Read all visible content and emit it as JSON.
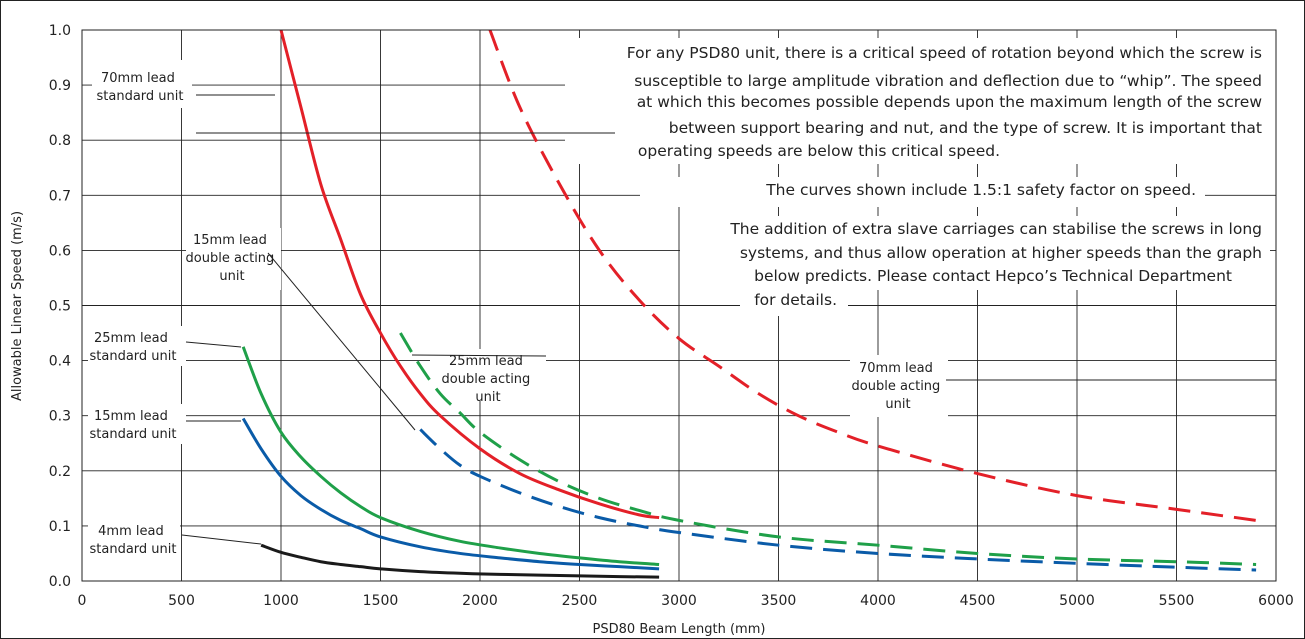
{
  "chart_data": {
    "type": "line",
    "title": "",
    "xlabel": "PSD80 Beam Length (mm)",
    "ylabel": "Allowable Linear Speed (m/s)",
    "xlim": [
      0,
      6000
    ],
    "ylim": [
      0,
      1.0
    ],
    "x_ticks": [
      "0",
      "500",
      "1000",
      "1500",
      "2000",
      "2500",
      "3000",
      "3500",
      "4000",
      "4500",
      "5000",
      "5500",
      "6000"
    ],
    "y_ticks": [
      "0.0",
      "0.1",
      "0.2",
      "0.3",
      "0.4",
      "0.5",
      "0.6",
      "0.7",
      "0.8",
      "0.9",
      "1.0"
    ],
    "grid": true,
    "series": [
      {
        "name": "70mm lead standard unit",
        "color": "#e32028",
        "style": "solid",
        "points": [
          [
            1000,
            1.0
          ],
          [
            1100,
            0.86
          ],
          [
            1200,
            0.72
          ],
          [
            1300,
            0.62
          ],
          [
            1400,
            0.52
          ],
          [
            1500,
            0.45
          ],
          [
            1600,
            0.39
          ],
          [
            1700,
            0.34
          ],
          [
            1800,
            0.3
          ],
          [
            2000,
            0.24
          ],
          [
            2200,
            0.195
          ],
          [
            2400,
            0.165
          ],
          [
            2600,
            0.14
          ],
          [
            2800,
            0.12
          ],
          [
            2900,
            0.115
          ]
        ]
      },
      {
        "name": "70mm lead double acting unit",
        "color": "#e32028",
        "style": "dashed",
        "points": [
          [
            2050,
            1.0
          ],
          [
            2200,
            0.86
          ],
          [
            2400,
            0.72
          ],
          [
            2600,
            0.6
          ],
          [
            2800,
            0.51
          ],
          [
            3000,
            0.44
          ],
          [
            3200,
            0.39
          ],
          [
            3400,
            0.34
          ],
          [
            3600,
            0.3
          ],
          [
            3800,
            0.27
          ],
          [
            4000,
            0.245
          ],
          [
            4500,
            0.195
          ],
          [
            5000,
            0.155
          ],
          [
            5500,
            0.13
          ],
          [
            5900,
            0.11
          ]
        ]
      },
      {
        "name": "25mm lead standard unit",
        "color": "#1fa049",
        "style": "solid",
        "points": [
          [
            810,
            0.425
          ],
          [
            900,
            0.34
          ],
          [
            1000,
            0.27
          ],
          [
            1100,
            0.225
          ],
          [
            1200,
            0.19
          ],
          [
            1300,
            0.16
          ],
          [
            1400,
            0.135
          ],
          [
            1500,
            0.115
          ],
          [
            1700,
            0.09
          ],
          [
            1900,
            0.072
          ],
          [
            2100,
            0.06
          ],
          [
            2300,
            0.05
          ],
          [
            2500,
            0.042
          ],
          [
            2700,
            0.035
          ],
          [
            2900,
            0.03
          ]
        ]
      },
      {
        "name": "25mm lead double acting unit",
        "color": "#1fa049",
        "style": "dashed",
        "points": [
          [
            1600,
            0.45
          ],
          [
            1700,
            0.39
          ],
          [
            1800,
            0.34
          ],
          [
            1900,
            0.305
          ],
          [
            2000,
            0.27
          ],
          [
            2200,
            0.22
          ],
          [
            2400,
            0.18
          ],
          [
            2600,
            0.15
          ],
          [
            2800,
            0.128
          ],
          [
            3000,
            0.11
          ],
          [
            3500,
            0.08
          ],
          [
            4000,
            0.065
          ],
          [
            4500,
            0.05
          ],
          [
            5000,
            0.04
          ],
          [
            5500,
            0.035
          ],
          [
            5900,
            0.03
          ]
        ]
      },
      {
        "name": "15mm lead standard unit",
        "color": "#0a5ba8",
        "style": "solid",
        "points": [
          [
            810,
            0.295
          ],
          [
            900,
            0.24
          ],
          [
            1000,
            0.19
          ],
          [
            1100,
            0.155
          ],
          [
            1200,
            0.13
          ],
          [
            1300,
            0.11
          ],
          [
            1400,
            0.095
          ],
          [
            1500,
            0.08
          ],
          [
            1700,
            0.062
          ],
          [
            1900,
            0.05
          ],
          [
            2100,
            0.042
          ],
          [
            2300,
            0.035
          ],
          [
            2500,
            0.03
          ],
          [
            2700,
            0.026
          ],
          [
            2900,
            0.022
          ]
        ]
      },
      {
        "name": "15mm lead double acting unit",
        "color": "#0a5ba8",
        "style": "dashed",
        "points": [
          [
            1700,
            0.275
          ],
          [
            1800,
            0.24
          ],
          [
            1900,
            0.21
          ],
          [
            2000,
            0.19
          ],
          [
            2200,
            0.16
          ],
          [
            2400,
            0.135
          ],
          [
            2600,
            0.115
          ],
          [
            2800,
            0.1
          ],
          [
            3000,
            0.088
          ],
          [
            3500,
            0.065
          ],
          [
            4000,
            0.05
          ],
          [
            4500,
            0.04
          ],
          [
            5000,
            0.032
          ],
          [
            5500,
            0.025
          ],
          [
            5900,
            0.02
          ]
        ]
      },
      {
        "name": "4mm lead standard unit",
        "color": "#1a1a1a",
        "style": "solid",
        "points": [
          [
            900,
            0.065
          ],
          [
            1000,
            0.052
          ],
          [
            1100,
            0.043
          ],
          [
            1200,
            0.035
          ],
          [
            1300,
            0.03
          ],
          [
            1400,
            0.026
          ],
          [
            1500,
            0.022
          ],
          [
            1700,
            0.017
          ],
          [
            1900,
            0.014
          ],
          [
            2100,
            0.012
          ],
          [
            2400,
            0.01
          ],
          [
            2700,
            0.008
          ],
          [
            2900,
            0.007
          ]
        ]
      }
    ],
    "annotations": [
      {
        "lines": [
          "70mm lead",
          "standard unit"
        ]
      },
      {
        "lines": [
          "15mm lead",
          "double acting",
          "unit"
        ]
      },
      {
        "lines": [
          "25mm lead",
          "standard unit"
        ]
      },
      {
        "lines": [
          "15mm lead",
          "standard unit"
        ]
      },
      {
        "lines": [
          "4mm lead",
          "standard unit"
        ]
      },
      {
        "lines": [
          "25mm lead",
          "double acting",
          "unit"
        ]
      },
      {
        "lines": [
          "70mm lead",
          "double acting",
          "unit"
        ]
      }
    ],
    "notes": [
      "For any PSD80 unit, there is a critical speed of rotation beyond which the screw is",
      "susceptible to large amplitude vibration and deflection due to “whip”.  The speed",
      "at which this becomes possible depends upon the maximum length of the screw",
      "between support bearing and nut, and the type of screw. It is important that",
      "operating speeds are below this critical speed.",
      "The curves shown include 1.5:1 safety factor on speed.",
      "The addition of extra slave carriages can stabilise the screws in long",
      "systems, and thus allow operation at higher speeds than the graph",
      "below predicts.  Please contact Hepco’s Technical Department",
      "for details."
    ]
  }
}
